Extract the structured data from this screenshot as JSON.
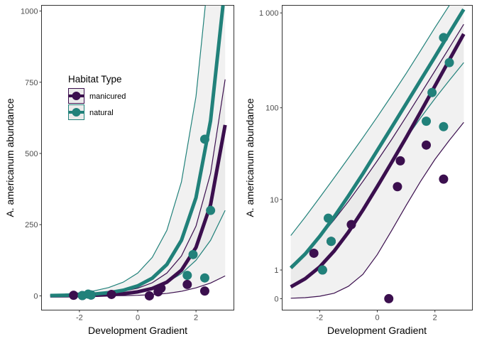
{
  "colors": {
    "manicured": "#3b0f4e",
    "natural": "#21817a",
    "ribbon": "#e5e5e5",
    "panel_border": "#333333",
    "tick_text": "#4d4d4d"
  },
  "chart_data": [
    {
      "type": "scatter",
      "panel": "left",
      "title": "",
      "xlabel": "Development Gradient",
      "ylabel": "A. americanum abundance",
      "xlim": [
        -3.3,
        3.3
      ],
      "ylim": [
        -50,
        1020
      ],
      "y_scale": "linear",
      "x_ticks": [
        -2,
        0,
        2
      ],
      "x_tick_labels": [
        "-2",
        "0",
        "2"
      ],
      "y_ticks": [
        0,
        250,
        500,
        750,
        1000
      ],
      "y_tick_labels": [
        "0",
        "250",
        "500",
        "750",
        "1000"
      ],
      "grid": false,
      "legend": {
        "title": "Habitat Type",
        "position": "top-left",
        "entries": [
          "manicured",
          "natural"
        ]
      },
      "fit_x": [
        -3,
        -2.5,
        -2,
        -1.5,
        -1,
        -0.5,
        0,
        0.5,
        1,
        1.5,
        2,
        2.5,
        3
      ],
      "series": [
        {
          "name": "manicured",
          "color": "#3b0f4e",
          "points": [
            {
              "x": -2.2,
              "y": 2
            },
            {
              "x": -1.9,
              "y": 1
            },
            {
              "x": -1.6,
              "y": 3
            },
            {
              "x": -0.9,
              "y": 5
            },
            {
              "x": 0.4,
              "y": 0
            },
            {
              "x": 0.7,
              "y": 14
            },
            {
              "x": 0.8,
              "y": 27
            },
            {
              "x": 1.7,
              "y": 40
            },
            {
              "x": 2.3,
              "y": 17
            }
          ],
          "fit": [
            0.33,
            0.62,
            1.15,
            2.15,
            4,
            7.5,
            14,
            26,
            48,
            90,
            170,
            320,
            600
          ],
          "ci_low": [
            0.01,
            0.025,
            0.06,
            0.14,
            0.35,
            0.8,
            1.9,
            4.2,
            8.5,
            16,
            28,
            45,
            70
          ],
          "ci_high": [
            1.2,
            2,
            3.4,
            5.7,
            9.5,
            16,
            27,
            46,
            80,
            140,
            245,
            430,
            760
          ]
        },
        {
          "name": "natural",
          "color": "#21817a",
          "points": [
            {
              "x": -1.9,
              "y": 1
            },
            {
              "x": -1.7,
              "y": 6
            },
            {
              "x": -1.6,
              "y": 3
            },
            {
              "x": 1.7,
              "y": 72
            },
            {
              "x": 1.9,
              "y": 145
            },
            {
              "x": 2.3,
              "y": 550
            },
            {
              "x": 2.3,
              "y": 63
            },
            {
              "x": 2.5,
              "y": 300
            }
          ],
          "fit": [
            1.1,
            1.95,
            3.5,
            6.2,
            11,
            19.5,
            35,
            62,
            110,
            195,
            345,
            615,
            1090
          ],
          "ci_low": [
            0.33,
            0.6,
            1.2,
            2.2,
            4.3,
            8,
            15,
            27,
            47,
            78,
            125,
            195,
            300
          ],
          "ci_high": [
            3.6,
            6.2,
            10.5,
            17.5,
            29,
            48,
            80,
            135,
            230,
            400,
            700,
            1200,
            2100
          ]
        }
      ]
    },
    {
      "type": "scatter",
      "panel": "right",
      "title": "",
      "xlabel": "Development Gradient",
      "ylabel": "A. americanum abundance",
      "xlim": [
        -3.3,
        3.3
      ],
      "y_scale": "log1p",
      "ylim": [
        -0.12,
        3.08
      ],
      "x_ticks": [
        -2,
        0,
        2
      ],
      "x_tick_labels": [
        "-2",
        "0",
        "2"
      ],
      "y_ticks": [
        0,
        1,
        10,
        100,
        1000
      ],
      "y_tick_labels": [
        "0",
        "1",
        "10",
        "100",
        "1 000"
      ],
      "grid": false,
      "legend": null,
      "same_series_as_left": true
    }
  ]
}
